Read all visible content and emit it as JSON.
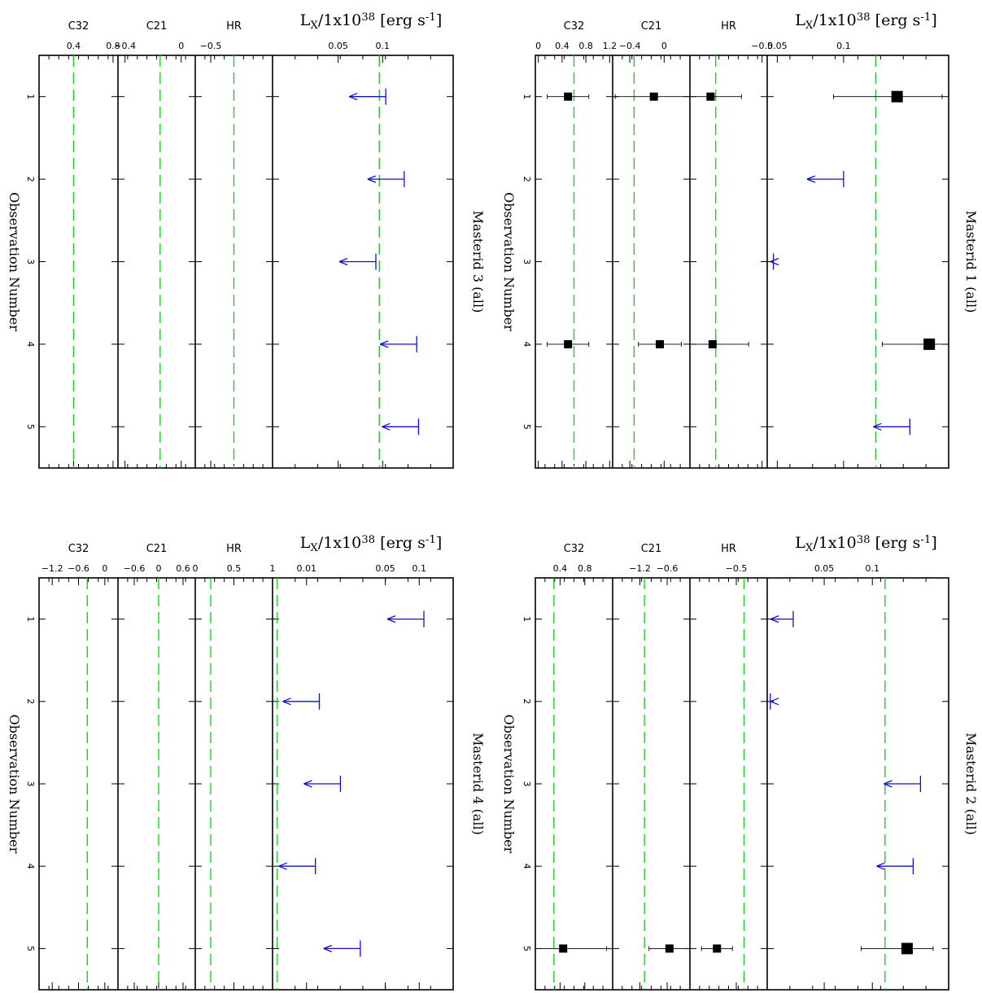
{
  "chart_data": [
    {
      "type": "scatter",
      "title": "Masterid 3 (all)",
      "xlabel": "Observation Number",
      "lx_label": "L_X/1x10^38 [erg s^-1]",
      "observations": [
        1,
        2,
        3,
        4,
        5
      ],
      "panels": [
        {
          "name": "C32",
          "range": [
            0.05,
            0.85
          ],
          "ticks": [
            "0.4",
            "0.8"
          ],
          "tick_values": [
            0.4,
            0.8
          ],
          "reference": 0.4
        },
        {
          "name": "C21",
          "range": [
            -0.45,
            0.1
          ],
          "ticks": [
            "-0.4",
            "0"
          ],
          "tick_values": [
            -0.4,
            0
          ],
          "reference": -0.15
        },
        {
          "name": "HR",
          "range": [
            -0.6,
            -0.1
          ],
          "ticks": [
            "-0.5"
          ],
          "tick_values": [
            -0.5
          ],
          "reference": -0.35
        },
        {
          "name": "L_X",
          "scale": "log",
          "range": [
            0.018,
            0.3
          ],
          "ticks": [
            "0.05",
            "0.1"
          ],
          "tick_values": [
            0.05,
            0.1
          ],
          "reference": 0.095
        }
      ],
      "lx_upper_limits": [
        {
          "obs": 1,
          "value": 0.105
        },
        {
          "obs": 2,
          "value": 0.14
        },
        {
          "obs": 3,
          "value": 0.09
        },
        {
          "obs": 4,
          "value": 0.17
        },
        {
          "obs": 5,
          "value": 0.175
        }
      ],
      "detections": []
    },
    {
      "type": "scatter",
      "title": "Masterid 1 (all)",
      "xlabel": "Observation Number",
      "lx_label": "L_X/1x10^38 [erg s^-1]",
      "observations": [
        1,
        2,
        3,
        4,
        5
      ],
      "panels": [
        {
          "name": "C32",
          "range": [
            -0.05,
            1.25
          ],
          "ticks": [
            "0",
            "0.4",
            "0.8",
            "1.2"
          ],
          "tick_values": [
            0,
            0.4,
            0.8,
            1.2
          ],
          "reference": 0.6
        },
        {
          "name": "C21",
          "range": [
            -0.6,
            0.3
          ],
          "ticks": [
            "-0.4",
            "0"
          ],
          "tick_values": [
            -0.4,
            0
          ],
          "reference": -0.35
        },
        {
          "name": "HR",
          "range": [
            -1.2,
            -0.45
          ],
          "ticks": [
            "-0.5"
          ],
          "tick_values": [
            -0.5
          ],
          "reference": -0.95
        },
        {
          "name": "L_X",
          "scale": "log",
          "range": [
            0.045,
            0.3
          ],
          "ticks": [
            "0.05",
            "0.1"
          ],
          "tick_values": [
            0.05,
            0.1
          ],
          "reference": 0.14
        }
      ],
      "lx_upper_limits": [
        {
          "obs": 2,
          "value": 0.1
        },
        {
          "obs": 3,
          "value": 0.048
        },
        {
          "obs": 5,
          "value": 0.2
        }
      ],
      "detections": [
        {
          "obs": 1,
          "C32": [
            0.5,
            0.35
          ],
          "C21": [
            -0.12,
            0.45
          ],
          "HR": [
            -1.0,
            0.3
          ],
          "L_X": [
            0.175,
            0.09,
            0.28
          ]
        },
        {
          "obs": 4,
          "C32": [
            0.5,
            0.35
          ],
          "C21": [
            -0.05,
            0.25
          ],
          "HR": [
            -0.98,
            0.35
          ],
          "L_X": [
            0.245,
            0.15,
            0.32
          ]
        }
      ]
    },
    {
      "type": "scatter",
      "title": "Masterid 4 (all)",
      "xlabel": "Observation Number",
      "lx_label": "L_X/1x10^38 [erg s^-1]",
      "observations": [
        1,
        2,
        3,
        4,
        5
      ],
      "panels": [
        {
          "name": "C32",
          "range": [
            -1.5,
            0.3
          ],
          "ticks": [
            "-1.2",
            "-0.6",
            "0"
          ],
          "tick_values": [
            -1.2,
            -0.6,
            0
          ],
          "reference": -0.4
        },
        {
          "name": "C21",
          "range": [
            -1.0,
            0.9
          ],
          "ticks": [
            "-0.6",
            "0",
            "0.6"
          ],
          "tick_values": [
            -0.6,
            0,
            0.6
          ],
          "reference": 0.0
        },
        {
          "name": "HR",
          "range": [
            0,
            1
          ],
          "ticks": [
            "0",
            "0.5",
            "1"
          ],
          "tick_values": [
            0,
            0.5,
            1
          ],
          "reference": 0.2
        },
        {
          "name": "L_X",
          "scale": "log",
          "range": [
            0.005,
            0.2
          ],
          "ticks": [
            "0.01",
            "0.05",
            "0.1"
          ],
          "tick_values": [
            0.01,
            0.05,
            0.1
          ],
          "reference": 0.0055
        }
      ],
      "lx_upper_limits": [
        {
          "obs": 1,
          "value": 0.11
        },
        {
          "obs": 2,
          "value": 0.013
        },
        {
          "obs": 3,
          "value": 0.02
        },
        {
          "obs": 4,
          "value": 0.012
        },
        {
          "obs": 5,
          "value": 0.03
        }
      ],
      "detections": []
    },
    {
      "type": "scatter",
      "title": "Masterid 2 (all)",
      "xlabel": "Observation Number",
      "lx_label": "L_X/1x10^38 [erg s^-1]",
      "observations": [
        1,
        2,
        3,
        4,
        5
      ],
      "panels": [
        {
          "name": "C32",
          "range": [
            0,
            1.25
          ],
          "ticks": [
            "0.4",
            "0.8"
          ],
          "tick_values": [
            0.4,
            0.8
          ],
          "reference": 0.3
        },
        {
          "name": "C21",
          "range": [
            -1.8,
            -0.1
          ],
          "ticks": [
            "-1.2",
            "-0.6"
          ],
          "tick_values": [
            -1.2,
            -0.6
          ],
          "reference": -1.1
        },
        {
          "name": "HR",
          "range": [
            -1.1,
            -0.1
          ],
          "ticks": [
            "-0.5"
          ],
          "tick_values": [
            -0.5
          ],
          "reference": -0.4
        },
        {
          "name": "L_X",
          "scale": "log",
          "range": [
            0.022,
            0.3
          ],
          "ticks": [
            "0.05",
            "0.1"
          ],
          "tick_values": [
            0.05,
            0.1
          ],
          "reference": 0.12
        }
      ],
      "lx_upper_limits": [
        {
          "obs": 1,
          "value": 0.032
        },
        {
          "obs": 2,
          "value": 0.023
        },
        {
          "obs": 3,
          "value": 0.2
        },
        {
          "obs": 4,
          "value": 0.18
        }
      ],
      "detections": [
        {
          "obs": 5,
          "C32": [
            0.45,
            0.7
          ],
          "C21": [
            -0.55,
            0.45
          ],
          "HR": [
            -0.75,
            0.2
          ],
          "L_X": [
            0.165,
            0.085,
            0.24
          ]
        }
      ]
    }
  ]
}
